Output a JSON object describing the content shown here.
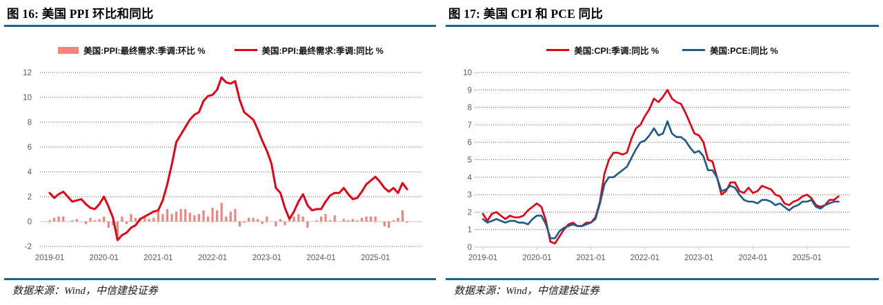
{
  "page": {
    "source_note": "数据来源：Wind，中信建投证券",
    "accent_rule_color": "#1b628e"
  },
  "chart_data": [
    {
      "type": "bar+line",
      "title": "图 16: 美国 PPI 环比和同比",
      "x_start": "2019-01",
      "x_frequency": "monthly",
      "x_tick_labels": [
        "2019-01",
        "2020-01",
        "2021-01",
        "2022-01",
        "2023-01",
        "2024-01",
        "2025-01"
      ],
      "ylim": [
        -2,
        12
      ],
      "yticks": [
        -2,
        0,
        2,
        4,
        6,
        8,
        10,
        12
      ],
      "grid": "horizontal-dotted",
      "legend_position": "top-center",
      "series": [
        {
          "name": "美国:PPI:最终需求:季调:环比 %",
          "type": "bar",
          "color": "#f4837d",
          "values": [
            0.1,
            0.3,
            0.4,
            0.4,
            0.0,
            0.1,
            0.2,
            0.0,
            -0.2,
            0.3,
            0.1,
            0.2,
            0.4,
            -0.5,
            -0.3,
            -1.2,
            0.4,
            -0.2,
            0.6,
            0.3,
            0.3,
            0.4,
            0.2,
            0.3,
            1.0,
            0.6,
            1.0,
            0.6,
            0.8,
            1.0,
            1.0,
            0.7,
            0.5,
            0.6,
            0.9,
            0.4,
            1.1,
            0.9,
            1.5,
            0.4,
            0.8,
            1.0,
            -0.4,
            -0.1,
            0.3,
            0.3,
            0.2,
            -0.2,
            0.4,
            0.0,
            -0.4,
            0.2,
            -0.3,
            0.1,
            0.4,
            0.6,
            0.4,
            -0.5,
            0.0,
            0.1,
            0.4,
            0.6,
            0.1,
            0.5,
            0.0,
            0.2,
            0.1,
            0.2,
            0.1,
            0.3,
            0.4,
            0.4,
            0.4,
            0.0,
            -0.4,
            -0.5,
            0.1,
            0.3,
            0.9,
            -0.1
          ]
        },
        {
          "name": "美国:PPI:最终需求:季调:同比 %",
          "type": "line",
          "color": "#e60012",
          "values": [
            2.3,
            1.9,
            2.2,
            2.4,
            2.0,
            1.6,
            1.7,
            1.8,
            1.4,
            1.1,
            1.0,
            1.4,
            2.0,
            1.2,
            0.3,
            -1.5,
            -1.1,
            -0.9,
            -0.5,
            -0.3,
            0.2,
            0.4,
            0.6,
            0.8,
            0.9,
            1.7,
            3.0,
            4.6,
            6.4,
            7.0,
            7.6,
            8.2,
            8.6,
            8.8,
            9.7,
            10.1,
            10.2,
            10.6,
            11.6,
            11.2,
            11.1,
            11.3,
            9.8,
            8.8,
            8.5,
            8.2,
            7.4,
            6.5,
            5.7,
            4.7,
            2.7,
            2.3,
            1.1,
            0.2,
            0.8,
            1.6,
            2.2,
            1.3,
            0.9,
            1.0,
            1.0,
            1.6,
            2.1,
            2.3,
            2.3,
            2.7,
            2.2,
            1.8,
            1.9,
            2.4,
            3.0,
            3.3,
            3.6,
            3.2,
            2.7,
            2.4,
            2.7,
            2.3,
            3.1,
            2.6
          ]
        }
      ]
    },
    {
      "type": "line",
      "title": "图 17: 美国 CPI 和 PCE 同比",
      "x_start": "2019-01",
      "x_frequency": "monthly",
      "x_tick_labels": [
        "2019-01",
        "2020-01",
        "2021-01",
        "2022-01",
        "2023-01",
        "2024-01",
        "2025-01"
      ],
      "ylim": [
        0,
        10
      ],
      "yticks": [
        0,
        1,
        2,
        3,
        4,
        5,
        6,
        7,
        8,
        9,
        10
      ],
      "grid": "horizontal-dotted",
      "legend_position": "top-center",
      "series": [
        {
          "name": "美国:CPI:季调:同比 %",
          "type": "line",
          "color": "#e60012",
          "values": [
            1.9,
            1.5,
            1.9,
            2.0,
            1.8,
            1.6,
            1.8,
            1.7,
            1.7,
            1.8,
            2.1,
            2.3,
            2.5,
            2.3,
            1.5,
            0.3,
            0.2,
            0.6,
            1.0,
            1.3,
            1.4,
            1.2,
            1.2,
            1.4,
            1.4,
            1.7,
            2.6,
            4.2,
            5.0,
            5.4,
            5.4,
            5.3,
            5.4,
            6.2,
            6.8,
            7.0,
            7.5,
            7.9,
            8.5,
            8.3,
            8.6,
            9.0,
            8.5,
            8.3,
            8.2,
            7.7,
            7.1,
            6.5,
            6.4,
            6.0,
            5.0,
            4.9,
            4.0,
            3.0,
            3.2,
            3.7,
            3.7,
            3.2,
            3.1,
            3.4,
            3.1,
            3.2,
            3.5,
            3.4,
            3.3,
            3.0,
            2.9,
            2.5,
            2.4,
            2.6,
            2.7,
            2.9,
            3.0,
            2.8,
            2.4,
            2.3,
            2.4,
            2.7,
            2.7,
            2.9
          ]
        },
        {
          "name": "美国:PCE:同比 %",
          "type": "line",
          "color": "#1f5c8b",
          "values": [
            1.6,
            1.4,
            1.5,
            1.6,
            1.5,
            1.4,
            1.5,
            1.5,
            1.4,
            1.4,
            1.3,
            1.6,
            1.8,
            1.8,
            1.3,
            0.5,
            0.5,
            0.9,
            1.1,
            1.2,
            1.3,
            1.2,
            1.2,
            1.3,
            1.4,
            1.6,
            2.5,
            3.6,
            4.0,
            4.0,
            4.2,
            4.4,
            4.6,
            5.1,
            5.6,
            6.0,
            6.1,
            6.4,
            6.8,
            6.4,
            6.5,
            7.2,
            6.5,
            6.3,
            6.3,
            6.1,
            5.7,
            5.4,
            5.5,
            5.2,
            4.4,
            4.4,
            4.0,
            3.2,
            3.3,
            3.5,
            3.4,
            3.0,
            2.7,
            2.6,
            2.6,
            2.5,
            2.7,
            2.7,
            2.6,
            2.4,
            2.5,
            2.3,
            2.1,
            2.3,
            2.4,
            2.6,
            2.6,
            2.7,
            2.3,
            2.2,
            2.4,
            2.5,
            2.6,
            2.6
          ]
        }
      ]
    }
  ]
}
